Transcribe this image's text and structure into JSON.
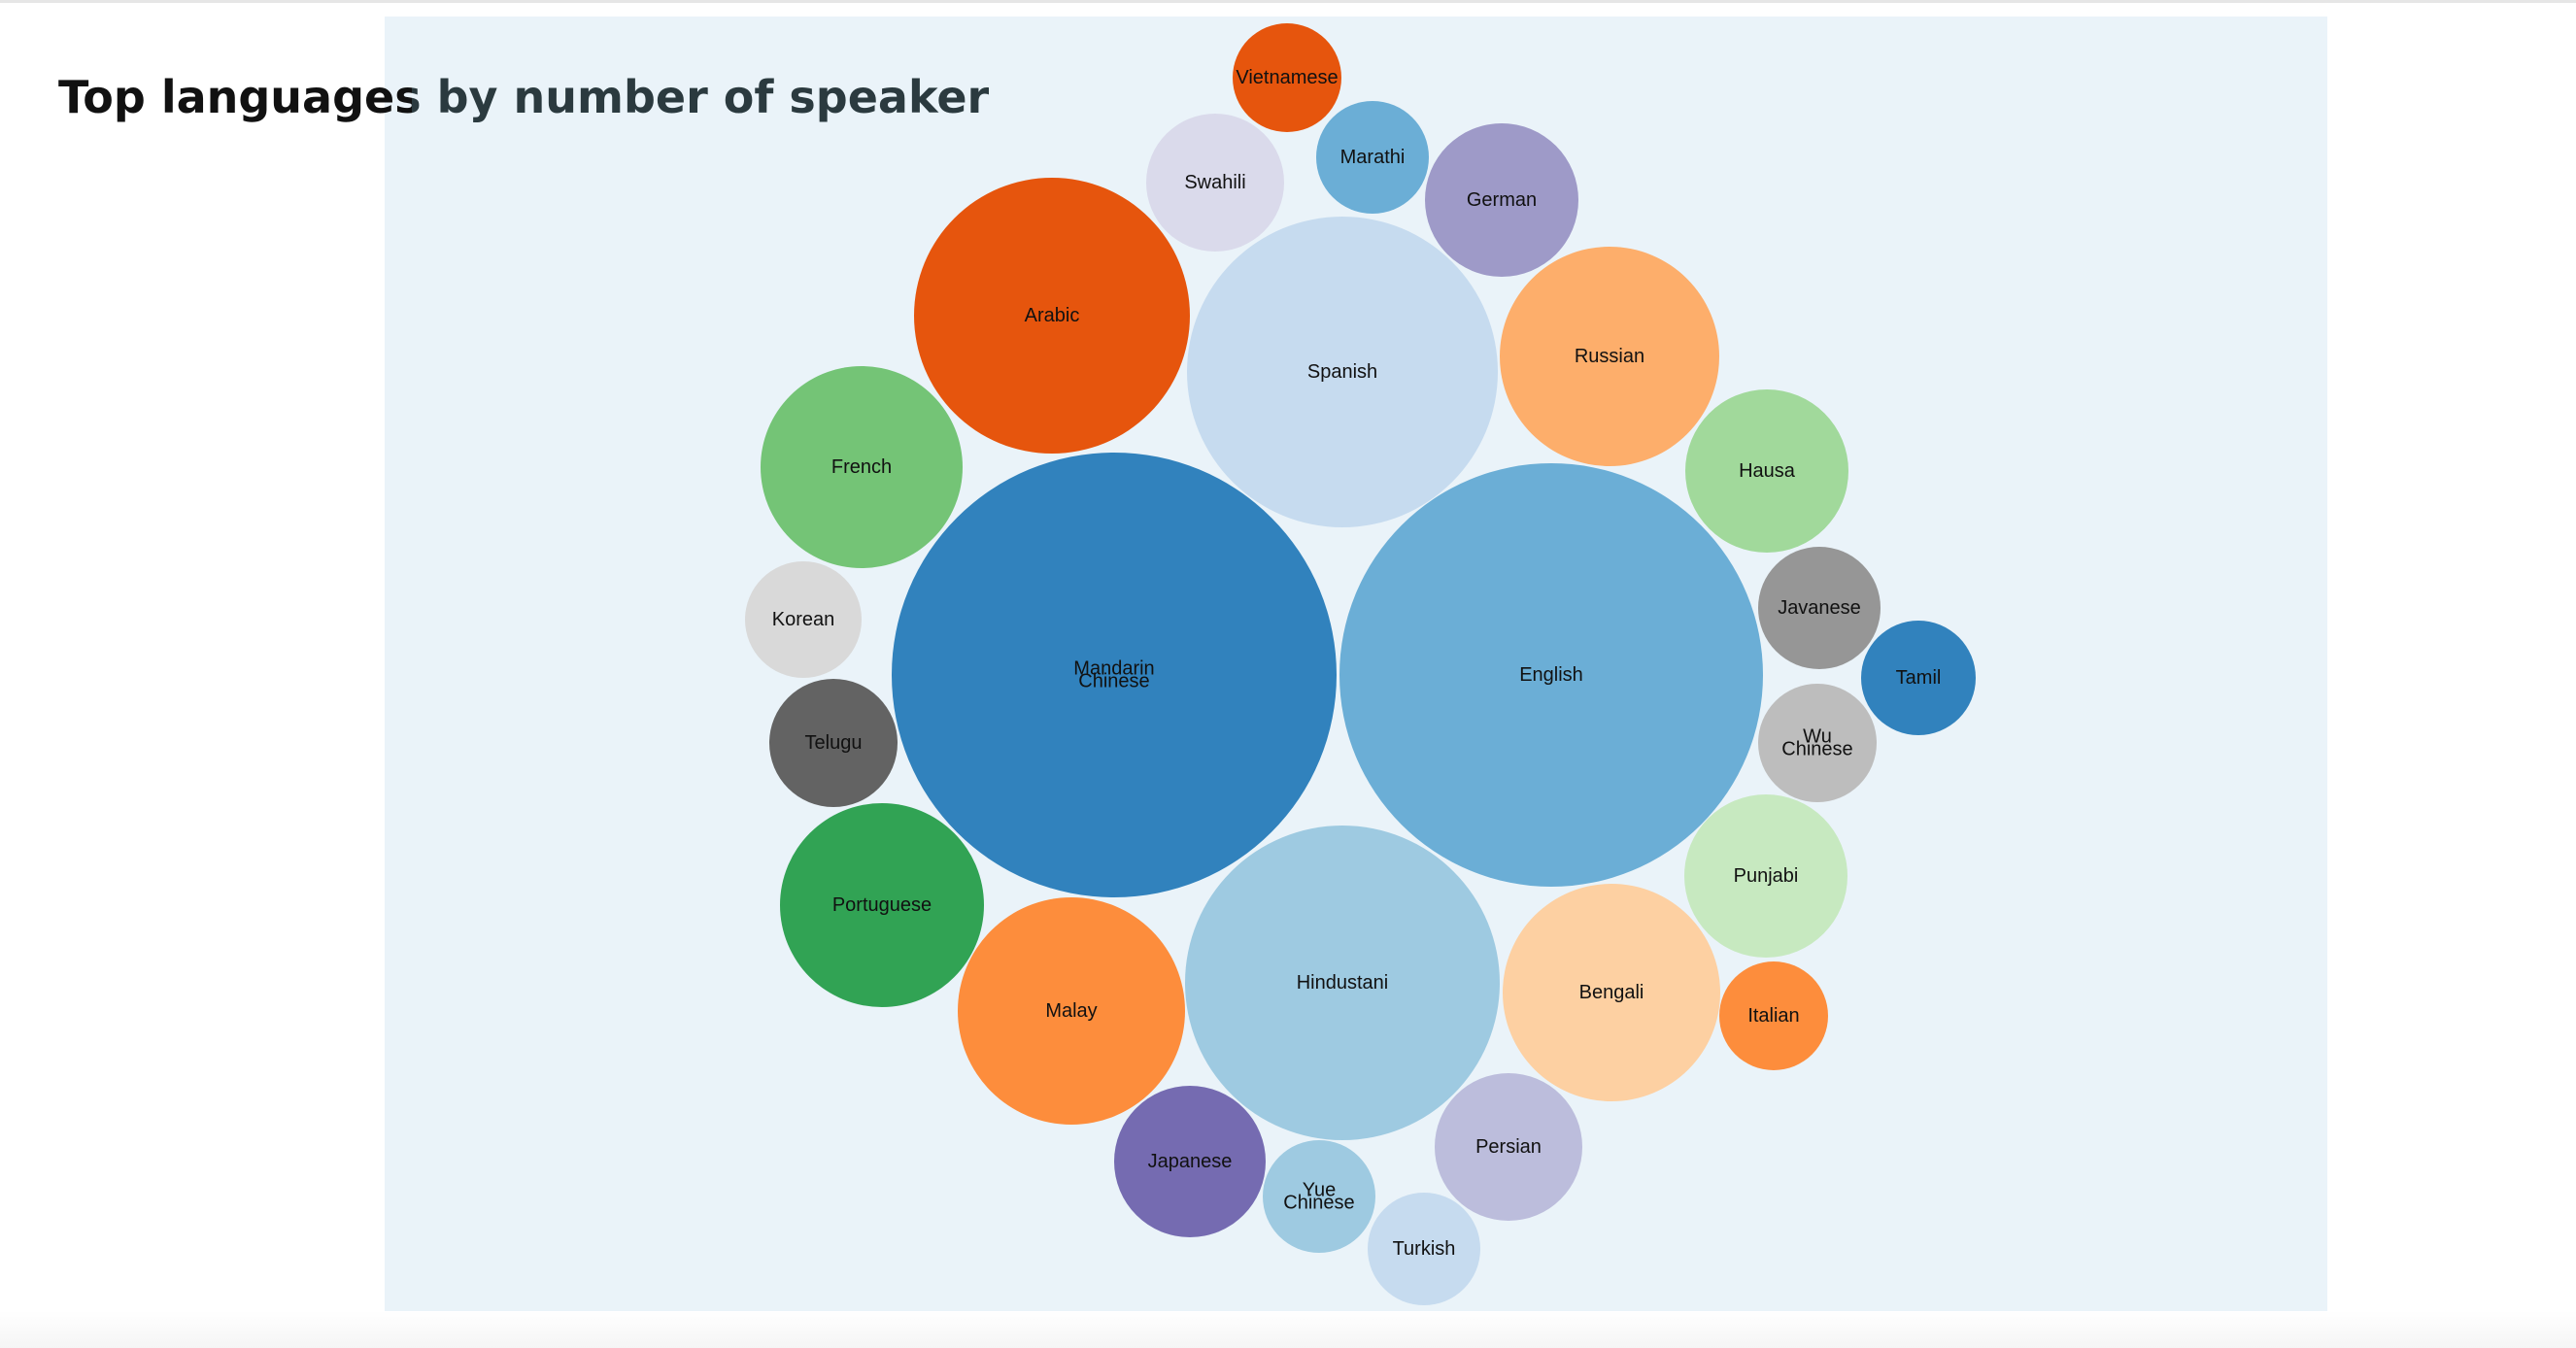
{
  "chart_data": {
    "type": "bubble",
    "title": "Top languages by number of speaker",
    "bubbles": [
      {
        "name": "Mandarin Chinese",
        "value": 1117,
        "color": "#3182bd"
      },
      {
        "name": "English",
        "value": 1003,
        "color": "#6baed6"
      },
      {
        "name": "Hindustani",
        "value": 544,
        "color": "#9ecae1"
      },
      {
        "name": "Spanish",
        "value": 535,
        "color": "#c6dbef"
      },
      {
        "name": "Arabic",
        "value": 422,
        "color": "#e6550d"
      },
      {
        "name": "Malay",
        "value": 281,
        "color": "#fd8d3c"
      },
      {
        "name": "Russian",
        "value": 264,
        "color": "#fdae6b"
      },
      {
        "name": "Bengali",
        "value": 260,
        "color": "#fdd0a2"
      },
      {
        "name": "Portuguese",
        "value": 234,
        "color": "#31a354"
      },
      {
        "name": "French",
        "value": 229,
        "color": "#74c476"
      },
      {
        "name": "Hausa",
        "value": 150,
        "color": "#a1d99b"
      },
      {
        "name": "Punjabi",
        "value": 148,
        "color": "#c7e9c0"
      },
      {
        "name": "Japanese",
        "value": 128,
        "color": "#756bb1"
      },
      {
        "name": "German",
        "value": 129,
        "color": "#9e9ac8"
      },
      {
        "name": "Persian",
        "value": 121,
        "color": "#bcbddc"
      },
      {
        "name": "Swahili",
        "value": 107,
        "color": "#dadaeb"
      },
      {
        "name": "Telugu",
        "value": 92,
        "color": "#636363"
      },
      {
        "name": "Javanese",
        "value": 84,
        "color": "#969696"
      },
      {
        "name": "Wu Chinese",
        "value": 80,
        "color": "#bdbdbd"
      },
      {
        "name": "Korean",
        "value": 77,
        "color": "#d9d9d9"
      },
      {
        "name": "Marathi",
        "value": 72,
        "color": "#6baed6"
      },
      {
        "name": "Tamil",
        "value": 74,
        "color": "#3182bd"
      },
      {
        "name": "Yue Chinese",
        "value": 73,
        "color": "#9ecae1"
      },
      {
        "name": "Turkish",
        "value": 70,
        "color": "#c6dbef"
      },
      {
        "name": "Vietnamese",
        "value": 67,
        "color": "#e6550d"
      },
      {
        "name": "Italian",
        "value": 67,
        "color": "#fd8d3c"
      }
    ]
  }
}
